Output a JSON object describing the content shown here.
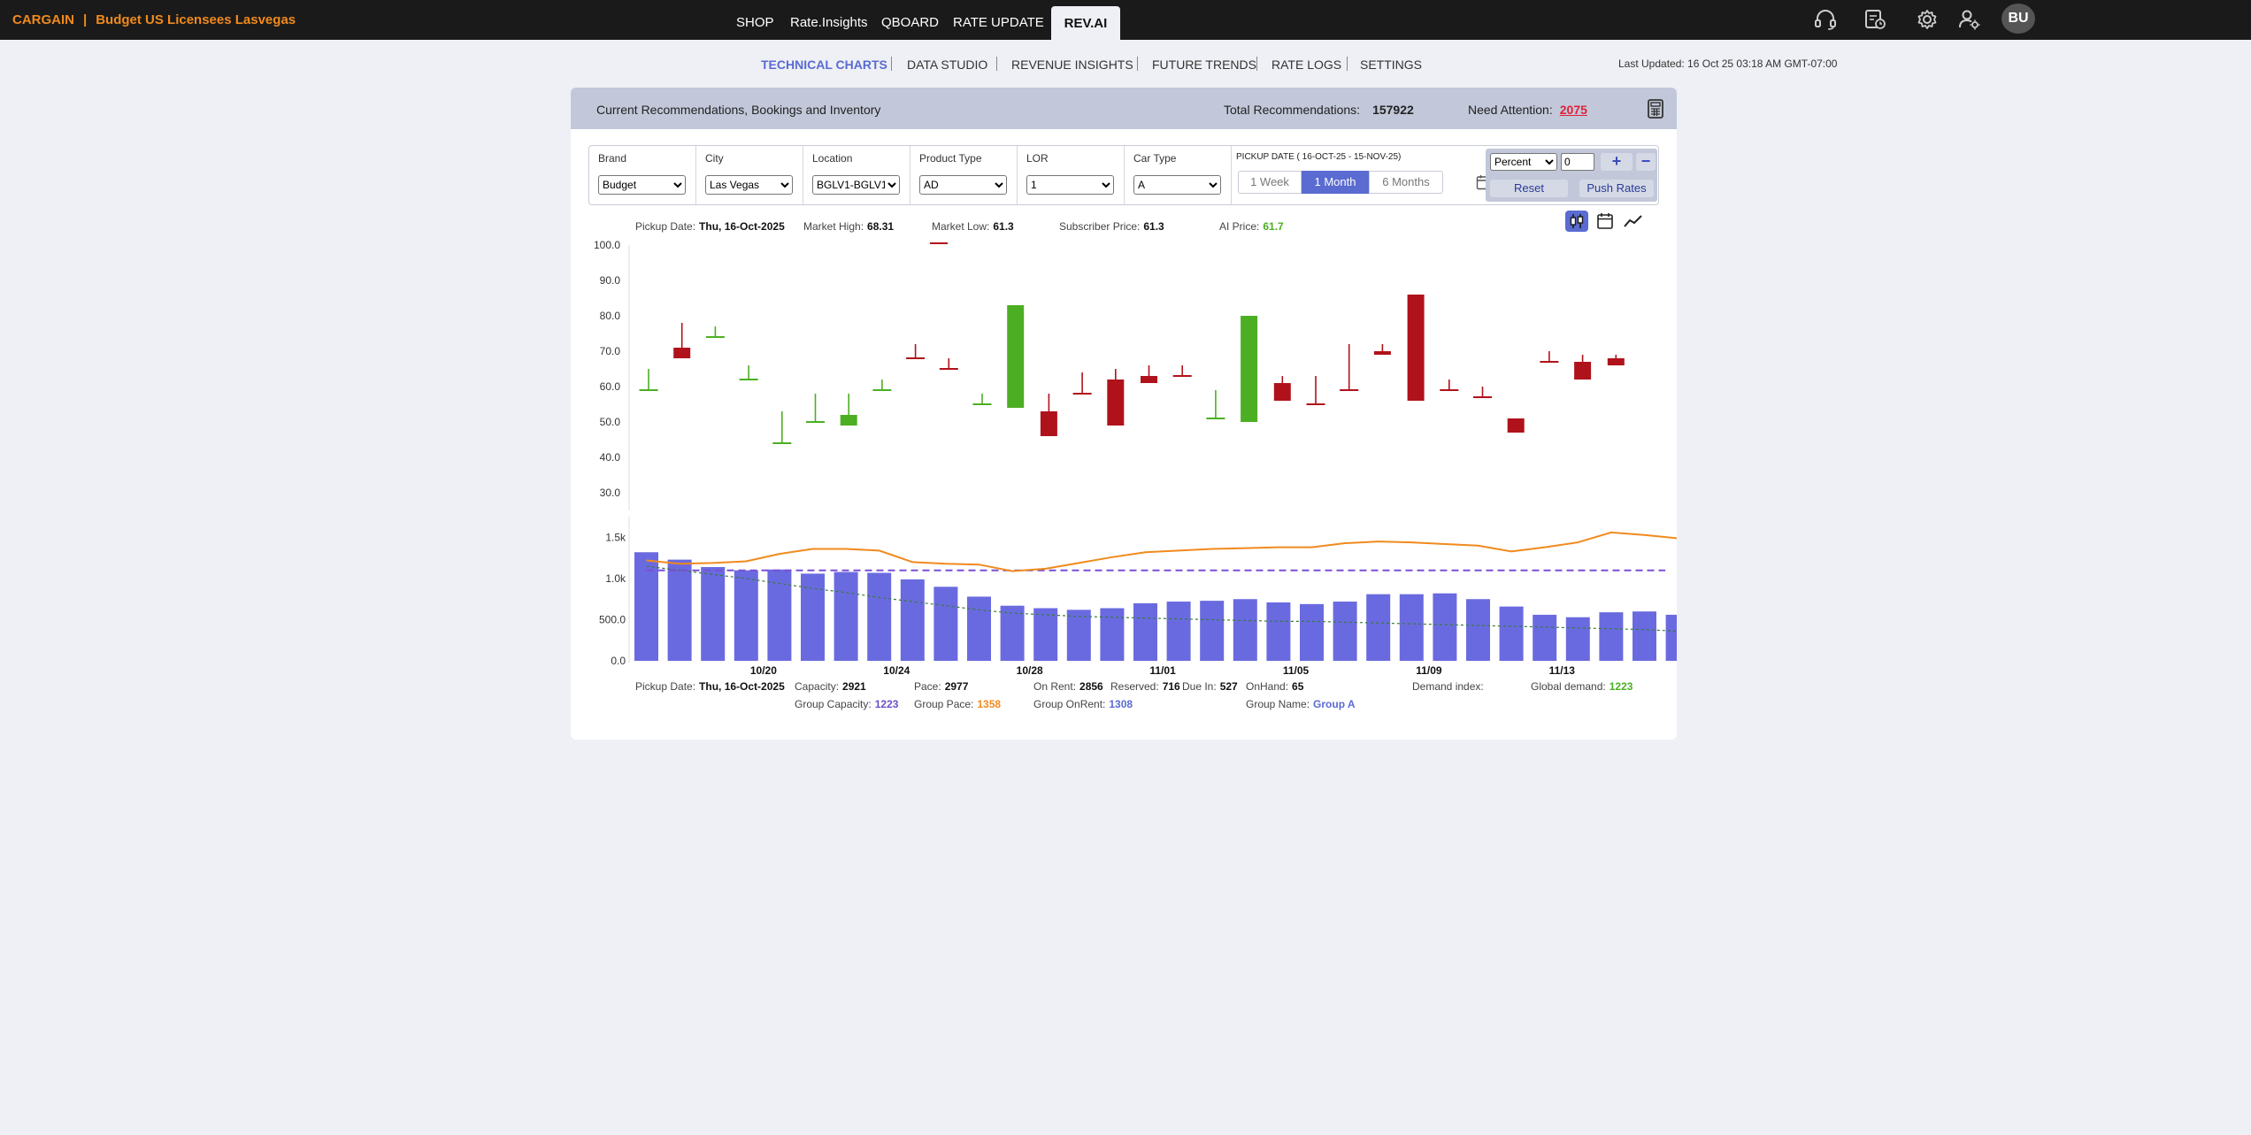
{
  "app": {
    "brand": "CARGAIN",
    "account": "Budget US Licensees Lasvegas"
  },
  "nav": {
    "tabs": [
      "SHOP",
      "Rate.Insights",
      "QBOARD",
      "RATE UPDATE"
    ],
    "active": "REV.AI"
  },
  "user": {
    "initials": "BU"
  },
  "subnav": {
    "tabs": [
      "TECHNICAL CHARTS",
      "DATA STUDIO",
      "REVENUE INSIGHTS",
      "FUTURE TRENDS",
      "RATE LOGS",
      "SETTINGS"
    ],
    "last_updated": "Last Updated: 16 Oct 25 03:18 AM GMT-07:00"
  },
  "card": {
    "title": "Current Recommendations, Bookings and Inventory",
    "total_label": "Total Recommendations:",
    "total_value": "157922",
    "attention_label": "Need Attention:",
    "attention_value": "2075"
  },
  "filters": {
    "brand": {
      "label": "Brand",
      "value": "Budget"
    },
    "city": {
      "label": "City",
      "value": "Las Vegas"
    },
    "location": {
      "label": "Location",
      "value": "BGLV1-BGLV1"
    },
    "product": {
      "label": "Product Type",
      "value": "AD"
    },
    "lor": {
      "label": "LOR",
      "value": "1"
    },
    "cartype": {
      "label": "Car Type",
      "value": "A"
    },
    "pickup_label": "PICKUP DATE ( 16-OCT-25 - 15-NOV-25)",
    "ranges": [
      "1 Week",
      "1 Month",
      "6 Months"
    ],
    "active_range": "1 Month",
    "adjust_mode": "Percent",
    "adjust_value": "0",
    "plus": "+",
    "minus": "−",
    "reset": "Reset",
    "push": "Push Rates"
  },
  "price_info": {
    "pickup_label": "Pickup Date:",
    "pickup_value": "Thu, 16-Oct-2025",
    "high_label": "Market High:",
    "high_value": "68.31",
    "low_label": "Market Low:",
    "low_value": "61.3",
    "sub_label": "Subscriber Price:",
    "sub_value": "61.3",
    "ai_label": "AI Price:",
    "ai_value": "61.7"
  },
  "volume_info": {
    "pickup_label": "Pickup Date:",
    "pickup_value": "Thu, 16-Oct-2025",
    "capacity_label": "Capacity:",
    "capacity_value": "2921",
    "pace_label": "Pace:",
    "pace_value": "2977",
    "onrent_label": "On Rent:",
    "onrent_value": "2856",
    "reserved_label": "Reserved:",
    "reserved_value": "716",
    "duein_label": "Due In:",
    "duein_value": "527",
    "onhand_label": "OnHand:",
    "onhand_value": "65",
    "demand_label": "Demand index:",
    "global_label": "Global demand:",
    "global_value": "1223",
    "gcap_label": "Group Capacity:",
    "gcap_value": "1223",
    "gpace_label": "Group Pace:",
    "gpace_value": "1358",
    "gonrent_label": "Group OnRent:",
    "gonrent_value": "1308",
    "gname_label": "Group Name:",
    "gname_value": "Group A"
  },
  "colors": {
    "up": "#4caf23",
    "down": "#b0121b",
    "bar": "#6a6ae0",
    "pace_line": "#f08a1d",
    "capacity_line": "#7a4fd6",
    "trend_line": "#3a7a3a"
  },
  "chart_data": [
    {
      "type": "candlestick",
      "title": "Price",
      "ylim": [
        30,
        100
      ],
      "yticks": [
        "100.0",
        "90.0",
        "80.0",
        "70.0",
        "60.0",
        "50.0",
        "40.0",
        "30.0"
      ],
      "candles": [
        {
          "dir": "up",
          "open": 59,
          "close": 59,
          "high": 65,
          "low": 59
        },
        {
          "dir": "down",
          "open": 71,
          "close": 68,
          "high": 78,
          "low": 68
        },
        {
          "dir": "up",
          "open": 74,
          "close": 74,
          "high": 77,
          "low": 74
        },
        {
          "dir": "up",
          "open": 62,
          "close": 62,
          "high": 66,
          "low": 62
        },
        {
          "dir": "up",
          "open": 44,
          "close": 44,
          "high": 53,
          "low": 44
        },
        {
          "dir": "up",
          "open": 50,
          "close": 50,
          "high": 58,
          "low": 50
        },
        {
          "dir": "up",
          "open": 49,
          "close": 52,
          "high": 58,
          "low": 49
        },
        {
          "dir": "up",
          "open": 59,
          "close": 59,
          "high": 62,
          "low": 59
        },
        {
          "dir": "down",
          "open": 68,
          "close": 68,
          "high": 72,
          "low": 68
        },
        {
          "dir": "down",
          "open": 65,
          "close": 65,
          "high": 68,
          "low": 65
        },
        {
          "dir": "up",
          "open": 55,
          "close": 55,
          "high": 58,
          "low": 55
        },
        {
          "dir": "up",
          "open": 54,
          "close": 83,
          "high": 83,
          "low": 54
        },
        {
          "dir": "down",
          "open": 53,
          "close": 46,
          "high": 58,
          "low": 46
        },
        {
          "dir": "down",
          "open": 58,
          "close": 58,
          "high": 64,
          "low": 58
        },
        {
          "dir": "down",
          "open": 62,
          "close": 49,
          "high": 65,
          "low": 49
        },
        {
          "dir": "down",
          "open": 63,
          "close": 61,
          "high": 66,
          "low": 61
        },
        {
          "dir": "down",
          "open": 63,
          "close": 63,
          "high": 66,
          "low": 63
        },
        {
          "dir": "up",
          "open": 51,
          "close": 51,
          "high": 59,
          "low": 51
        },
        {
          "dir": "up",
          "open": 50,
          "close": 80,
          "high": 80,
          "low": 50
        },
        {
          "dir": "down",
          "open": 61,
          "close": 56,
          "high": 63,
          "low": 56
        },
        {
          "dir": "down",
          "open": 55,
          "close": 55,
          "high": 63,
          "low": 55
        },
        {
          "dir": "down",
          "open": 59,
          "close": 59,
          "high": 72,
          "low": 59
        },
        {
          "dir": "down",
          "open": 70,
          "close": 69,
          "high": 72,
          "low": 69
        },
        {
          "dir": "down",
          "open": 86,
          "close": 56,
          "high": 86,
          "low": 56
        },
        {
          "dir": "down",
          "open": 59,
          "close": 59,
          "high": 62,
          "low": 59
        },
        {
          "dir": "down",
          "open": 57,
          "close": 57,
          "high": 60,
          "low": 57
        },
        {
          "dir": "down",
          "open": 51,
          "close": 47,
          "high": 51,
          "low": 47
        },
        {
          "dir": "down",
          "open": 67,
          "close": 67,
          "high": 70,
          "low": 67
        },
        {
          "dir": "down",
          "open": 67,
          "close": 62,
          "high": 69,
          "low": 62
        },
        {
          "dir": "down",
          "open": 68,
          "close": 66,
          "high": 69,
          "low": 66
        }
      ]
    },
    {
      "type": "bar",
      "title": "Bookings and Inventory",
      "ylim": [
        0,
        1800
      ],
      "yticks": [
        "1.5k",
        "1.0k",
        "500.0",
        "0.0"
      ],
      "x_labels": [
        "10/20",
        "10/24",
        "10/28",
        "11/01",
        "11/05",
        "11/09",
        "11/13"
      ],
      "x_label_index": [
        4,
        8,
        12,
        16,
        20,
        24,
        28
      ],
      "bars": [
        1320,
        1230,
        1140,
        1100,
        1110,
        1060,
        1080,
        1070,
        990,
        900,
        780,
        670,
        640,
        620,
        640,
        700,
        720,
        730,
        750,
        710,
        690,
        720,
        810,
        810,
        820,
        750,
        660,
        560,
        530,
        590,
        600,
        560
      ],
      "pace": [
        1220,
        1180,
        1190,
        1210,
        1300,
        1360,
        1360,
        1340,
        1200,
        1180,
        1170,
        1090,
        1120,
        1190,
        1260,
        1320,
        1340,
        1360,
        1370,
        1380,
        1380,
        1430,
        1450,
        1440,
        1420,
        1400,
        1330,
        1380,
        1440,
        1560,
        1530,
        1490
      ],
      "capacity": 1100,
      "trend": [
        1150,
        1100,
        1050,
        1000,
        940,
        880,
        830,
        770,
        720,
        670,
        620,
        580,
        560,
        540,
        530,
        520,
        510,
        500,
        490,
        480,
        480,
        470,
        460,
        450,
        440,
        430,
        420,
        410,
        400,
        390,
        380,
        360
      ]
    }
  ]
}
